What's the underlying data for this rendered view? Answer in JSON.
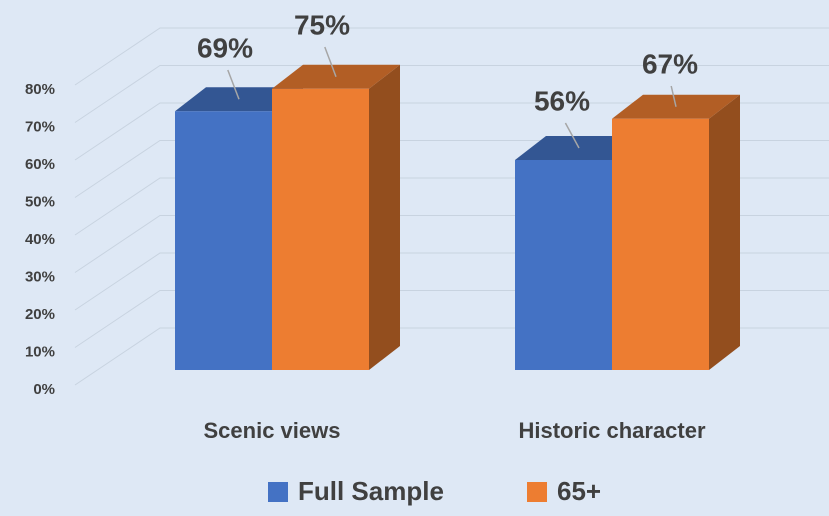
{
  "chart_data": {
    "type": "bar3d",
    "categories": [
      "Scenic views",
      "Historic character"
    ],
    "series": [
      {
        "name": "Full Sample",
        "color": "#4472c4",
        "values": [
          69,
          56
        ],
        "value_labels": [
          "69%",
          "56%"
        ]
      },
      {
        "name": "65+",
        "color": "#ed7d31",
        "values": [
          75,
          67
        ],
        "value_labels": [
          "75%",
          "67%"
        ]
      }
    ],
    "ylim": [
      0,
      80
    ],
    "yticks": [
      {
        "value": 0,
        "label": "0%"
      },
      {
        "value": 10,
        "label": "10%"
      },
      {
        "value": 20,
        "label": "20%"
      },
      {
        "value": 30,
        "label": "30%"
      },
      {
        "value": 40,
        "label": "40%"
      },
      {
        "value": 50,
        "label": "50%"
      },
      {
        "value": 60,
        "label": "60%"
      },
      {
        "value": 70,
        "label": "70%"
      },
      {
        "value": 80,
        "label": "80%"
      }
    ],
    "grid": true,
    "legend": "bottom"
  }
}
